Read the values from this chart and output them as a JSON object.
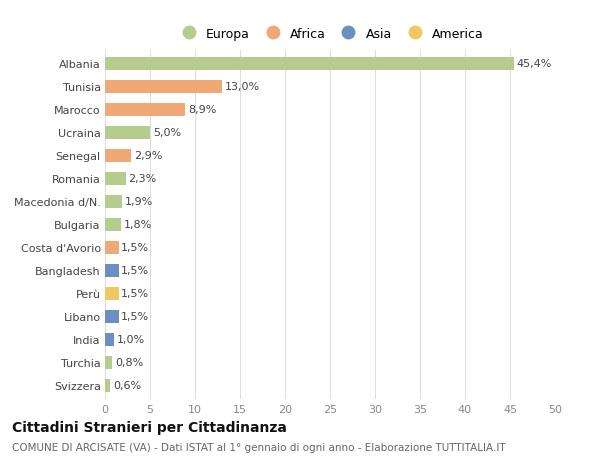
{
  "countries": [
    "Albania",
    "Tunisia",
    "Marocco",
    "Ucraina",
    "Senegal",
    "Romania",
    "Macedonia d/N.",
    "Bulgaria",
    "Costa d'Avorio",
    "Bangladesh",
    "Perù",
    "Libano",
    "India",
    "Turchia",
    "Svizzera"
  ],
  "values": [
    45.4,
    13.0,
    8.9,
    5.0,
    2.9,
    2.3,
    1.9,
    1.8,
    1.5,
    1.5,
    1.5,
    1.5,
    1.0,
    0.8,
    0.6
  ],
  "labels": [
    "45,4%",
    "13,0%",
    "8,9%",
    "5,0%",
    "2,9%",
    "2,3%",
    "1,9%",
    "1,8%",
    "1,5%",
    "1,5%",
    "1,5%",
    "1,5%",
    "1,0%",
    "0,8%",
    "0,6%"
  ],
  "continents": [
    "Europa",
    "Africa",
    "Africa",
    "Europa",
    "Africa",
    "Europa",
    "Europa",
    "Europa",
    "Africa",
    "Asia",
    "America",
    "Asia",
    "Asia",
    "Europa",
    "Europa"
  ],
  "colors": {
    "Europa": "#b5cc8e",
    "Africa": "#f0a875",
    "Asia": "#6b8fc2",
    "America": "#f0c860"
  },
  "legend_order": [
    "Europa",
    "Africa",
    "Asia",
    "America"
  ],
  "title": "Cittadini Stranieri per Cittadinanza",
  "subtitle": "COMUNE DI ARCISATE (VA) - Dati ISTAT al 1° gennaio di ogni anno - Elaborazione TUTTITALIA.IT",
  "xlim": [
    0,
    50
  ],
  "xticks": [
    0,
    5,
    10,
    15,
    20,
    25,
    30,
    35,
    40,
    45,
    50
  ],
  "background_color": "#ffffff",
  "grid_color": "#dddddd",
  "bar_height": 0.55,
  "label_fontsize": 8,
  "tick_fontsize": 8,
  "legend_fontsize": 9,
  "title_fontsize": 10,
  "subtitle_fontsize": 7.5
}
